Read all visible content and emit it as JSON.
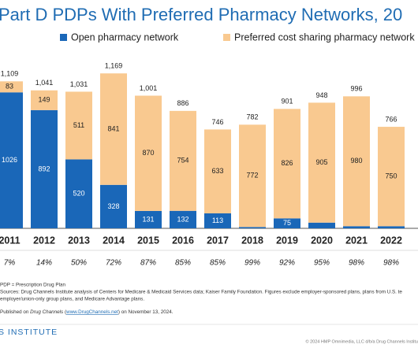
{
  "chart_data": {
    "type": "stacked_bar",
    "title": "Part D PDPs With Preferred Pharmacy Networks, 20",
    "categories": [
      "2011",
      "2012",
      "2013",
      "2014",
      "2015",
      "2016",
      "2017",
      "2018",
      "2019",
      "2020",
      "2021",
      "2022"
    ],
    "series": [
      {
        "name": "Open pharmacy network",
        "color": "#1a67b8",
        "values": [
          1026,
          892,
          520,
          328,
          131,
          132,
          113,
          10,
          75,
          43,
          16,
          16
        ]
      },
      {
        "name": "Preferred cost sharing pharmacy network",
        "color": "#f9c990",
        "values": [
          83,
          149,
          511,
          841,
          870,
          754,
          633,
          772,
          826,
          905,
          980,
          750
        ]
      }
    ],
    "totals": {
      "values": [
        1109,
        1041,
        1031,
        1169,
        1001,
        886,
        746,
        782,
        901,
        948,
        996,
        766
      ],
      "value_labels": [
        "1,109",
        "1,041",
        "1,031",
        "1,169",
        "1,001",
        "886",
        "746",
        "782",
        "901",
        "948",
        "996",
        "766"
      ]
    },
    "preferred_share": {
      "values": [
        7,
        14,
        50,
        72,
        87,
        85,
        85,
        99,
        92,
        95,
        98,
        98
      ],
      "value_labels": [
        "7%",
        "14%",
        "50%",
        "72%",
        "87%",
        "85%",
        "85%",
        "99%",
        "92%",
        "95%",
        "98%",
        "98%"
      ]
    },
    "ylim": [
      0,
      1200
    ]
  },
  "footer": {
    "notes": [
      "PDP = Prescription Drug Plan",
      "Sources: Drug Channels Institute analysis of Centers for Medicare & Medicaid Services data; Kaiser Family Foundation. Figures exclude employer-sponsored plans, plans from U.S. te",
      "employer/union-only group plans, and Medicare Advantage plans."
    ],
    "published": [
      "Published on",
      "Drug Channels",
      "(",
      "www.DrugChannels.net",
      ") on November 13, 2024."
    ],
    "brand": "S INSTITUTE",
    "copyright": "© 2024 HMP Omnimedia, LLC d/b/a Drug Channels Institu"
  }
}
